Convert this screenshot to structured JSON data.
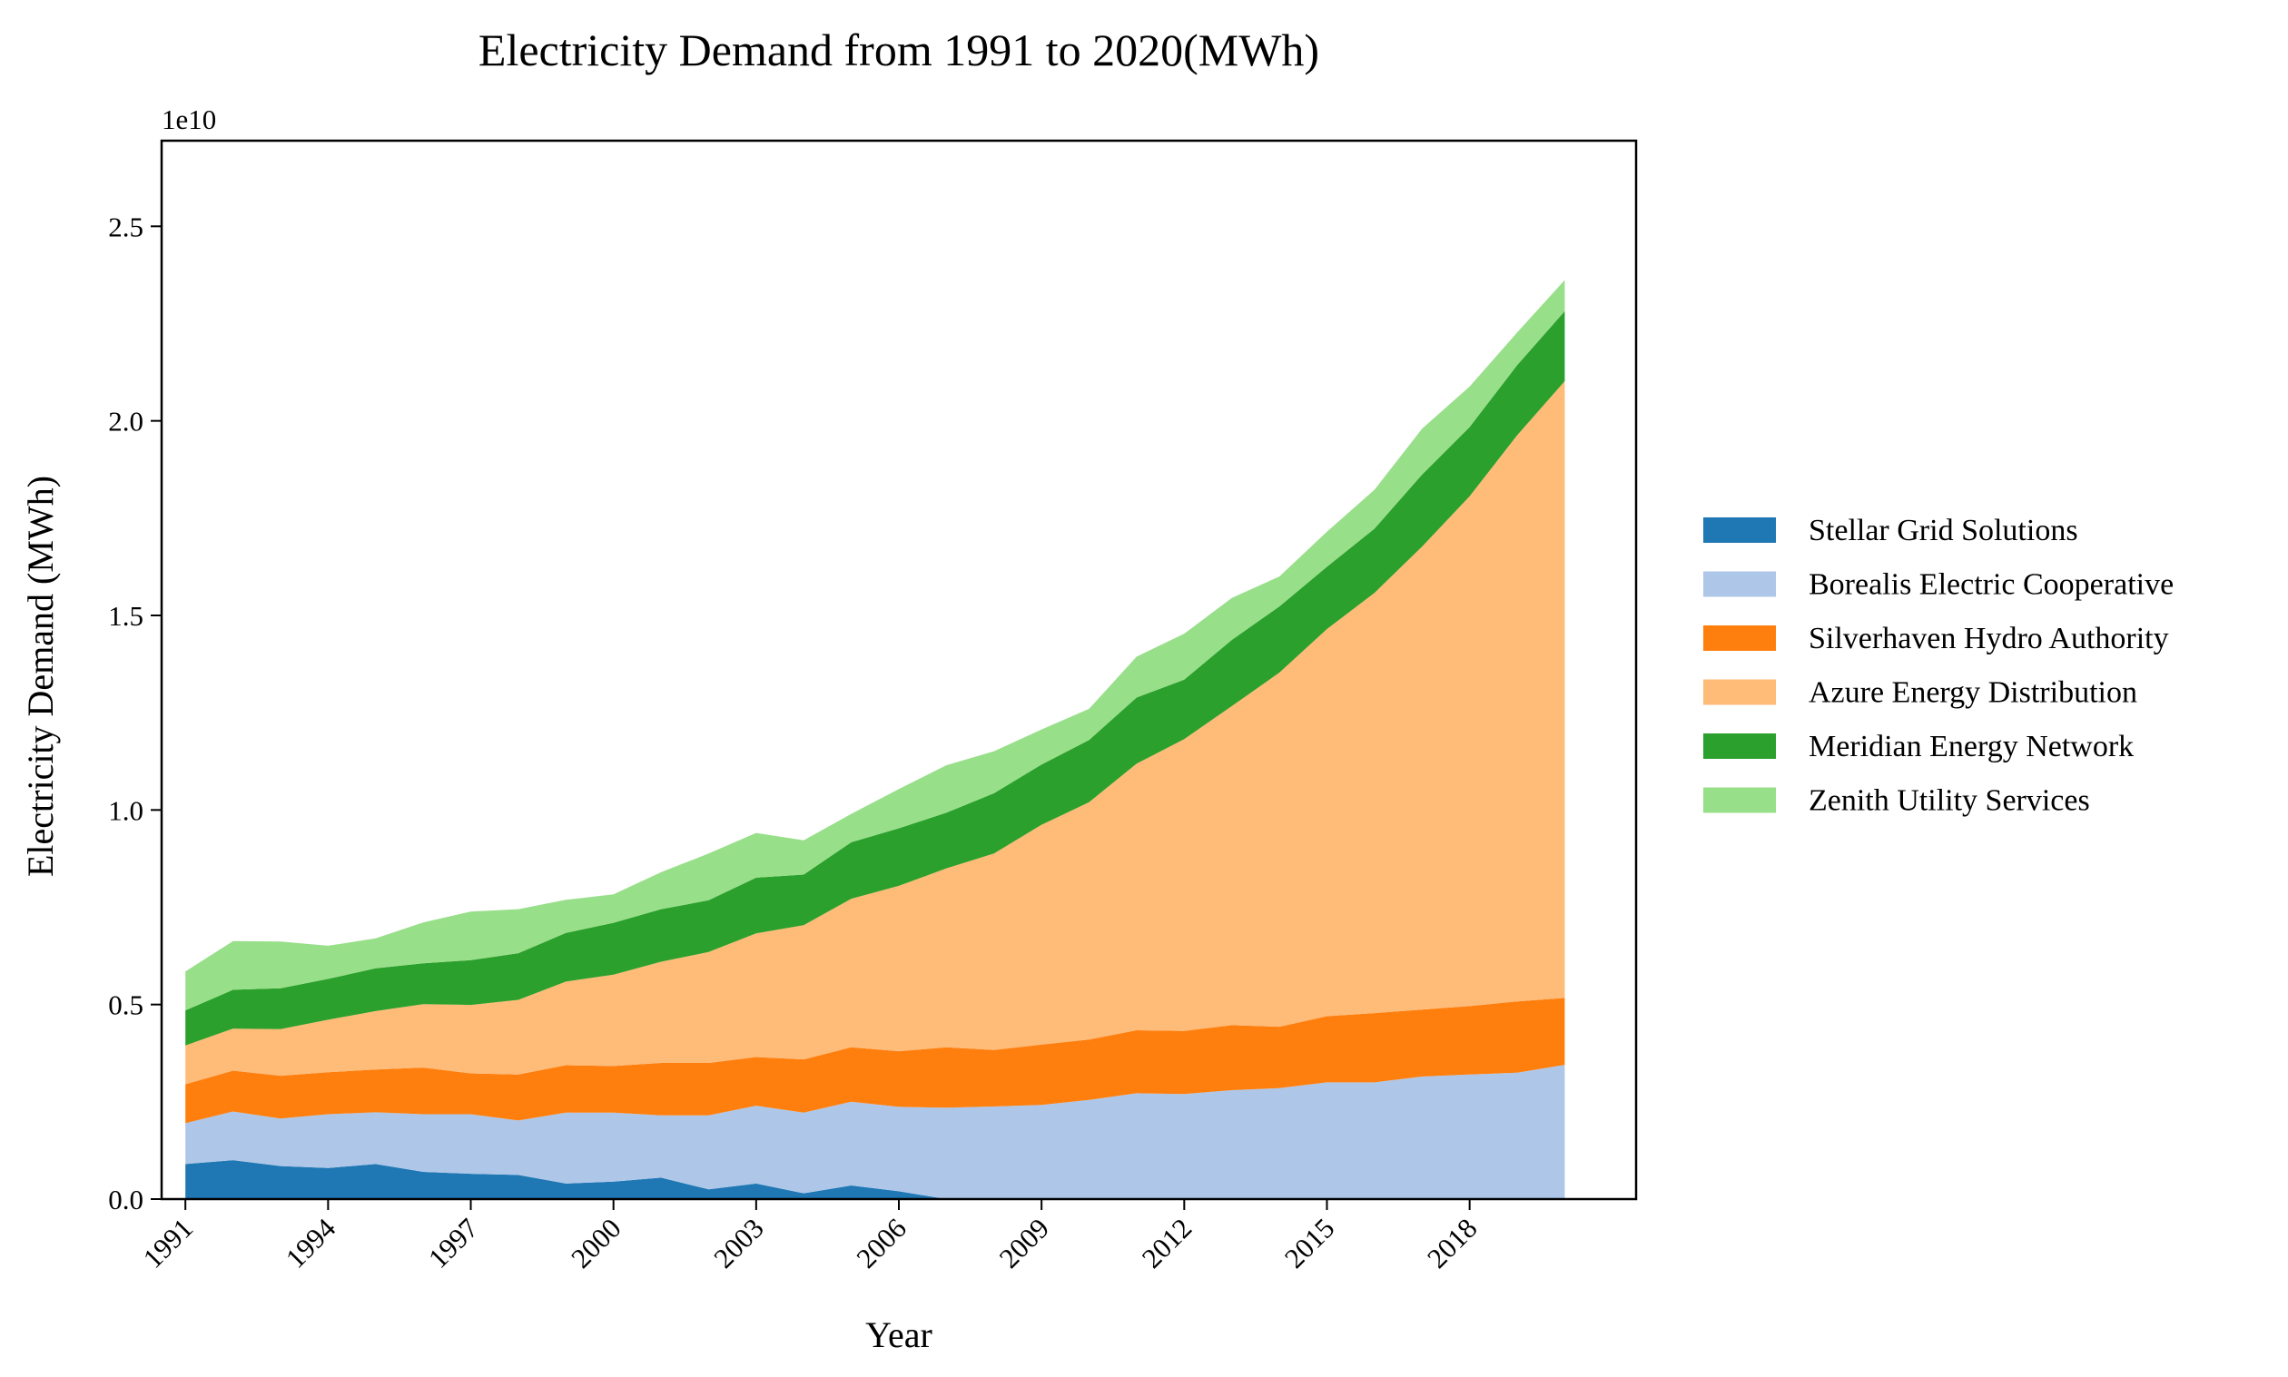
{
  "chart_data": {
    "type": "area",
    "stacked": true,
    "title": "Electricity Demand from 1991 to 2020(MWh)",
    "xlabel": "Year",
    "ylabel": "Electricity Demand (MWh)",
    "y_scale_label": "1e10",
    "y_scale": 10000000000,
    "xlim": [
      1990.5,
      2021.5
    ],
    "ylim": [
      0,
      2.72
    ],
    "x_ticks": [
      1991,
      1994,
      1997,
      2000,
      2003,
      2006,
      2009,
      2012,
      2015,
      2018
    ],
    "x_tick_labels": [
      "1991",
      "1994",
      "1997",
      "2000",
      "2003",
      "2006",
      "2009",
      "2012",
      "2015",
      "2018"
    ],
    "y_ticks": [
      0,
      0.5,
      1.0,
      1.5,
      2.0,
      2.5
    ],
    "y_tick_labels": [
      "0.0",
      "0.5",
      "1.0",
      "1.5",
      "2.0",
      "2.5"
    ],
    "grid": false,
    "legend_position": "right",
    "x": [
      1991,
      1992,
      1993,
      1994,
      1995,
      1996,
      1997,
      1998,
      1999,
      2000,
      2001,
      2002,
      2003,
      2004,
      2005,
      2006,
      2007,
      2008,
      2009,
      2010,
      2011,
      2012,
      2013,
      2014,
      2015,
      2016,
      2017,
      2018,
      2019,
      2020
    ],
    "series": [
      {
        "name": "Stellar Grid Solutions",
        "color": "#1f77b4",
        "values": [
          0.09,
          0.1,
          0.085,
          0.08,
          0.09,
          0.07,
          0.065,
          0.062,
          0.04,
          0.045,
          0.055,
          0.025,
          0.04,
          0.015,
          0.035,
          0.02,
          0.0,
          0.0,
          0.0,
          0.0,
          0.0,
          0.0,
          0.0,
          0.0,
          0.0,
          0.0,
          0.0,
          0.0,
          0.0,
          0.0
        ]
      },
      {
        "name": "Borealis Electric Cooperative",
        "color": "#aec7e8",
        "values": [
          0.105,
          0.125,
          0.122,
          0.138,
          0.133,
          0.148,
          0.153,
          0.14,
          0.182,
          0.177,
          0.16,
          0.19,
          0.2,
          0.207,
          0.215,
          0.217,
          0.235,
          0.238,
          0.242,
          0.255,
          0.272,
          0.27,
          0.28,
          0.285,
          0.3,
          0.3,
          0.315,
          0.32,
          0.325,
          0.345
        ]
      },
      {
        "name": "Silverhaven Hydro Authority",
        "color": "#ff7f0e",
        "values": [
          0.1,
          0.105,
          0.11,
          0.108,
          0.11,
          0.12,
          0.105,
          0.118,
          0.122,
          0.12,
          0.135,
          0.135,
          0.125,
          0.137,
          0.14,
          0.143,
          0.155,
          0.145,
          0.155,
          0.155,
          0.162,
          0.162,
          0.167,
          0.158,
          0.17,
          0.178,
          0.172,
          0.176,
          0.183,
          0.172
        ]
      },
      {
        "name": "Azure Energy Distribution",
        "color": "#ffbb78",
        "values": [
          0.1,
          0.108,
          0.12,
          0.135,
          0.15,
          0.163,
          0.176,
          0.192,
          0.215,
          0.235,
          0.26,
          0.285,
          0.318,
          0.345,
          0.382,
          0.425,
          0.46,
          0.505,
          0.565,
          0.61,
          0.685,
          0.75,
          0.82,
          0.91,
          0.995,
          1.08,
          1.19,
          1.31,
          1.455,
          1.585
        ]
      },
      {
        "name": "Meridian Energy Network",
        "color": "#2ca02c",
        "values": [
          0.09,
          0.1,
          0.105,
          0.105,
          0.11,
          0.105,
          0.115,
          0.12,
          0.125,
          0.133,
          0.135,
          0.133,
          0.143,
          0.13,
          0.145,
          0.148,
          0.143,
          0.155,
          0.155,
          0.16,
          0.17,
          0.153,
          0.17,
          0.17,
          0.16,
          0.165,
          0.185,
          0.178,
          0.18,
          0.18
        ]
      },
      {
        "name": "Zenith Utility Services",
        "color": "#98df8a",
        "values": [
          0.1,
          0.125,
          0.12,
          0.085,
          0.077,
          0.105,
          0.125,
          0.113,
          0.085,
          0.073,
          0.095,
          0.12,
          0.115,
          0.088,
          0.073,
          0.101,
          0.122,
          0.108,
          0.09,
          0.08,
          0.105,
          0.118,
          0.108,
          0.077,
          0.09,
          0.1,
          0.118,
          0.104,
          0.084,
          0.08
        ]
      }
    ]
  }
}
